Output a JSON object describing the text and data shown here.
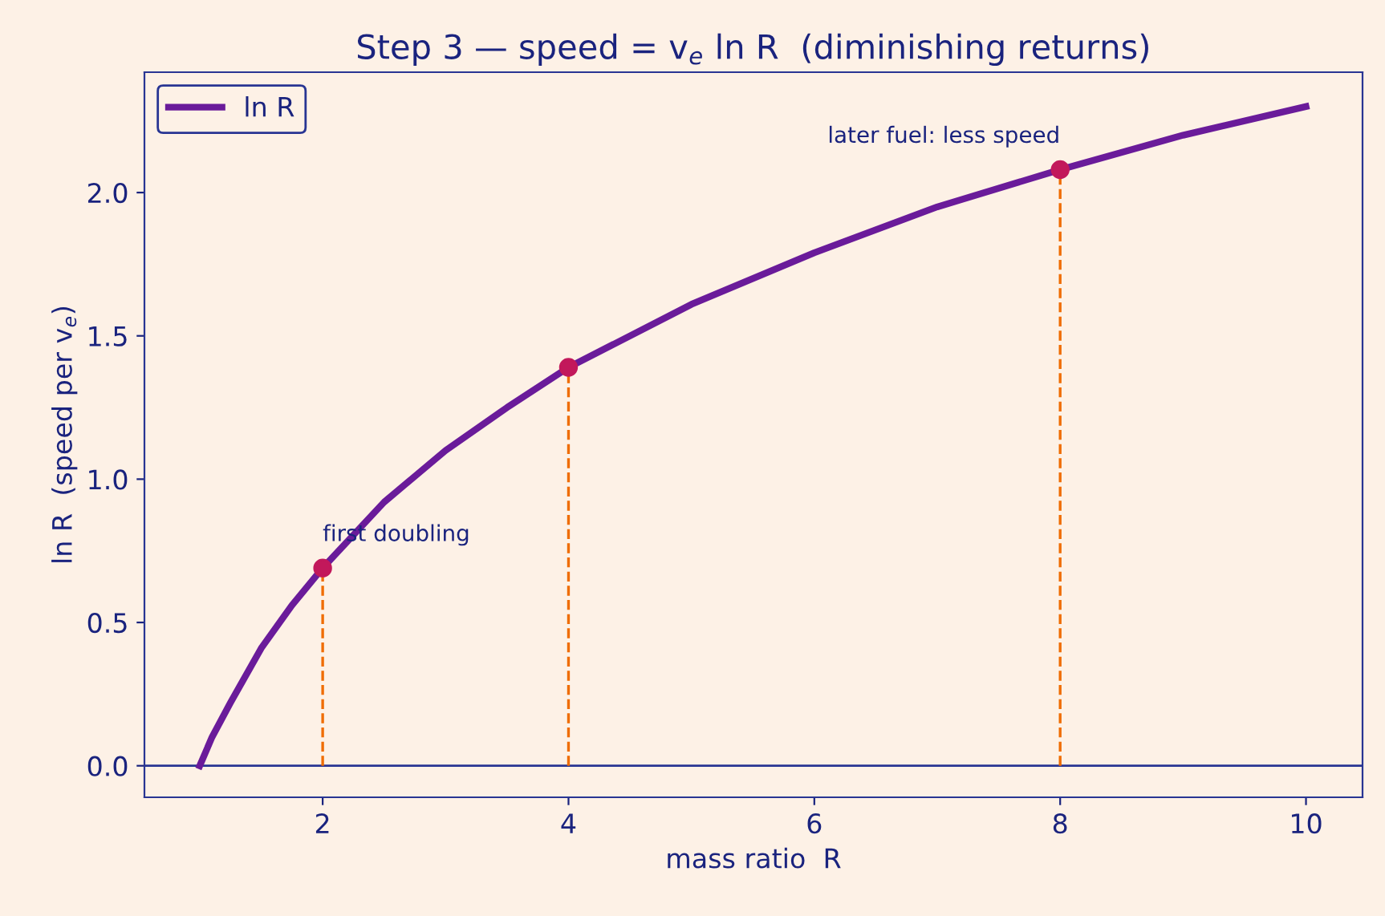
{
  "chart_data": {
    "type": "line",
    "title": "Step 3 — speed = v$_{e}$ ln R  (diminishing returns)",
    "xlabel": "mass ratio  R",
    "ylabel": "ln R  (speed per v$_{e}$)",
    "series": [
      {
        "name": "ln R",
        "color": "#6a1b9a",
        "x": [
          1,
          1.1,
          1.25,
          1.5,
          1.75,
          2,
          2.5,
          3,
          3.5,
          4,
          5,
          6,
          7,
          8,
          9,
          10
        ],
        "values": [
          0,
          0.1,
          0.22,
          0.41,
          0.56,
          0.69,
          0.92,
          1.1,
          1.25,
          1.39,
          1.61,
          1.79,
          1.95,
          2.08,
          2.2,
          2.3
        ]
      },
      {
        "type": "lollipop",
        "color": "#c2185b",
        "x": [
          2,
          4,
          8
        ],
        "values": [
          0.69,
          1.39,
          2.08
        ],
        "line_style": "dashed"
      }
    ],
    "annotations": [
      {
        "text": "first doubling",
        "x": 2,
        "y": 0.69
      },
      {
        "text": "later fuel: less speed",
        "x": 8,
        "y": 2.08
      }
    ],
    "ref_lines": [
      {
        "axis": "y",
        "value": 0,
        "color": "#283593"
      }
    ],
    "xlim": [
      0.55,
      10.46
    ],
    "xticks": [
      2,
      4,
      6,
      8,
      10
    ],
    "ylim": [
      -0.11,
      2.42
    ],
    "yticks": [
      {
        "value": 0,
        "label": "0.0"
      },
      {
        "value": 0.5,
        "label": "0.5"
      },
      {
        "value": 1,
        "label": "1.0"
      },
      {
        "value": 1.5,
        "label": "1.5"
      },
      {
        "value": 2,
        "label": "2.0"
      }
    ],
    "grid": false,
    "legend": "top left"
  }
}
